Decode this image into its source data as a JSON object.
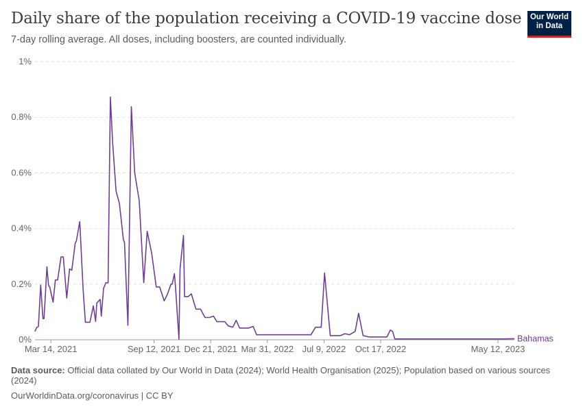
{
  "header": {
    "title": "Daily share of the population receiving a COVID-19 vaccine dose",
    "subtitle": "7-day rolling average. All doses, including boosters, are counted individually.",
    "logo_line1": "Our World",
    "logo_line2": "in Data"
  },
  "footer": {
    "source_label": "Data source:",
    "source_text": " Official data collated by Our World in Data (2024); World Health Organisation (2025); Population based on various sources (2024)",
    "url": "OurWorldinData.org/coronavirus | CC BY"
  },
  "colors": {
    "series": "#6d3e91",
    "grid": "#dddddd",
    "axis": "#999999"
  },
  "chart_data": {
    "type": "line",
    "ylim": [
      0,
      1
    ],
    "y_ticks": [
      0,
      0.2,
      0.4,
      0.6,
      0.8,
      1
    ],
    "y_tick_labels": [
      "0%",
      "0.2%",
      "0.4%",
      "0.6%",
      "0.8%",
      "1%"
    ],
    "xlim": [
      "2021-02-14",
      "2023-06-10"
    ],
    "x_ticks": [
      "2021-03-14",
      "2021-09-12",
      "2021-12-21",
      "2022-03-31",
      "2022-07-09",
      "2022-10-17",
      "2023-05-12"
    ],
    "x_tick_labels": [
      "Mar 14, 2021",
      "Sep 12, 2021",
      "Dec 21, 2021",
      "Mar 31, 2022",
      "Jul 9, 2022",
      "Oct 17, 2022",
      "May 12, 2023"
    ],
    "grid": "horizontal dashed",
    "series": [
      {
        "name": "Bahamas",
        "points": [
          [
            "2021-02-14",
            0.03
          ],
          [
            "2021-02-17",
            0.044
          ],
          [
            "2021-02-20",
            0.048
          ],
          [
            "2021-02-24",
            0.197
          ],
          [
            "2021-02-28",
            0.076
          ],
          [
            "2021-03-02",
            0.076
          ],
          [
            "2021-03-07",
            0.262
          ],
          [
            "2021-03-10",
            0.195
          ],
          [
            "2021-03-12",
            0.19
          ],
          [
            "2021-03-18",
            0.135
          ],
          [
            "2021-03-22",
            0.215
          ],
          [
            "2021-03-26",
            0.215
          ],
          [
            "2021-04-01",
            0.298
          ],
          [
            "2021-04-05",
            0.298
          ],
          [
            "2021-04-11",
            0.15
          ],
          [
            "2021-04-16",
            0.255
          ],
          [
            "2021-04-20",
            0.25
          ],
          [
            "2021-04-26",
            0.348
          ],
          [
            "2021-04-28",
            0.355
          ],
          [
            "2021-05-04",
            0.425
          ],
          [
            "2021-05-10",
            0.18
          ],
          [
            "2021-05-14",
            0.063
          ],
          [
            "2021-05-22",
            0.063
          ],
          [
            "2021-05-28",
            0.122
          ],
          [
            "2021-06-01",
            0.066
          ],
          [
            "2021-06-03",
            0.132
          ],
          [
            "2021-06-09",
            0.145
          ],
          [
            "2021-06-11",
            0.085
          ],
          [
            "2021-06-15",
            0.185
          ],
          [
            "2021-06-19",
            0.205
          ],
          [
            "2021-06-23",
            0.205
          ],
          [
            "2021-06-27",
            0.873
          ],
          [
            "2021-07-01",
            0.71
          ],
          [
            "2021-07-07",
            0.535
          ],
          [
            "2021-07-13",
            0.49
          ],
          [
            "2021-07-20",
            0.36
          ],
          [
            "2021-07-22",
            0.35
          ],
          [
            "2021-07-28",
            0.052
          ],
          [
            "2021-08-03",
            0.838
          ],
          [
            "2021-08-09",
            0.6
          ],
          [
            "2021-08-17",
            0.5
          ],
          [
            "2021-08-25",
            0.205
          ],
          [
            "2021-08-31",
            0.39
          ],
          [
            "2021-09-08",
            0.31
          ],
          [
            "2021-09-16",
            0.19
          ],
          [
            "2021-09-22",
            0.19
          ],
          [
            "2021-09-30",
            0.14
          ],
          [
            "2021-10-06",
            0.165
          ],
          [
            "2021-10-12",
            0.2
          ],
          [
            "2021-10-14",
            0.2
          ],
          [
            "2021-10-18",
            0.238
          ],
          [
            "2021-10-20",
            0.19
          ],
          [
            "2021-10-26",
            0.002
          ],
          [
            "2021-10-28",
            0.255
          ],
          [
            "2021-11-03",
            0.375
          ],
          [
            "2021-11-05",
            0.155
          ],
          [
            "2021-11-11",
            0.155
          ],
          [
            "2021-11-17",
            0.165
          ],
          [
            "2021-11-25",
            0.11
          ],
          [
            "2021-12-03",
            0.11
          ],
          [
            "2021-12-11",
            0.08
          ],
          [
            "2021-12-19",
            0.08
          ],
          [
            "2021-12-26",
            0.085
          ],
          [
            "2022-01-01",
            0.065
          ],
          [
            "2022-01-07",
            0.065
          ],
          [
            "2022-01-15",
            0.065
          ],
          [
            "2022-01-21",
            0.05
          ],
          [
            "2022-01-29",
            0.045
          ],
          [
            "2022-02-04",
            0.07
          ],
          [
            "2022-02-10",
            0.042
          ],
          [
            "2022-02-18",
            0.042
          ],
          [
            "2022-02-26",
            0.042
          ],
          [
            "2022-03-06",
            0.048
          ],
          [
            "2022-03-12",
            0.018
          ],
          [
            "2022-03-20",
            0.018
          ],
          [
            "2022-04-15",
            0.018
          ],
          [
            "2022-05-10",
            0.018
          ],
          [
            "2022-06-04",
            0.018
          ],
          [
            "2022-06-16",
            0.018
          ],
          [
            "2022-06-24",
            0.045
          ],
          [
            "2022-07-04",
            0.045
          ],
          [
            "2022-07-10",
            0.24
          ],
          [
            "2022-07-20",
            0.015
          ],
          [
            "2022-07-26",
            0.015
          ],
          [
            "2022-08-07",
            0.015
          ],
          [
            "2022-08-15",
            0.022
          ],
          [
            "2022-08-23",
            0.018
          ],
          [
            "2022-09-02",
            0.03
          ],
          [
            "2022-09-08",
            0.095
          ],
          [
            "2022-09-16",
            0.015
          ],
          [
            "2022-09-26",
            0.01
          ],
          [
            "2022-10-06",
            0.01
          ],
          [
            "2022-10-16",
            0.01
          ],
          [
            "2022-10-28",
            0.01
          ],
          [
            "2022-11-03",
            0.035
          ],
          [
            "2022-11-07",
            0.03
          ],
          [
            "2022-11-11",
            0.003
          ],
          [
            "2022-12-15",
            0.003
          ],
          [
            "2023-01-20",
            0.003
          ],
          [
            "2023-03-01",
            0.003
          ],
          [
            "2023-04-10",
            0.003
          ],
          [
            "2023-05-20",
            0.003
          ],
          [
            "2023-06-10",
            0.004
          ]
        ]
      }
    ]
  }
}
